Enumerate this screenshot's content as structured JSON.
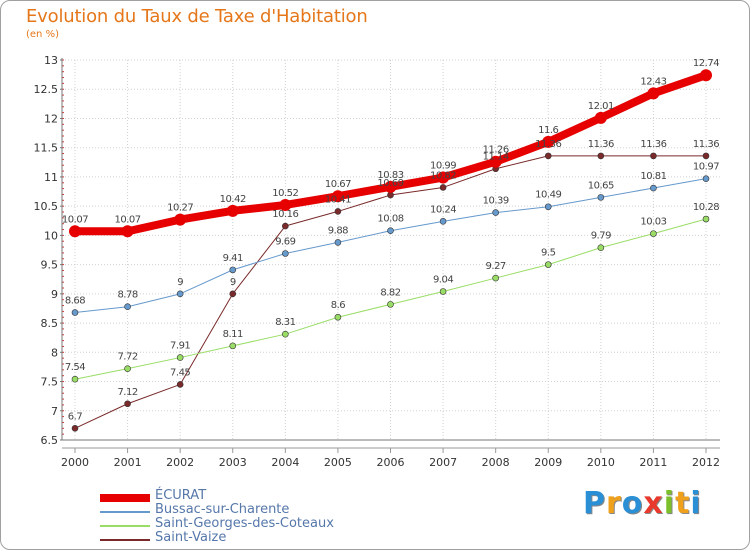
{
  "header": {
    "title": "Evolution du Taux de Taxe d'Habitation",
    "unit": "(en %)"
  },
  "colors": {
    "title": "#e5771a",
    "axis_text": "#333333",
    "grid": "#d0d0d0"
  },
  "logo": {
    "letters": [
      "P",
      "r",
      "o",
      "x",
      "i",
      "t",
      "i"
    ],
    "colors": [
      "#2a8fd4",
      "#f0a11b",
      "#2a8fd4",
      "#e8392c",
      "#7bbf2a",
      "#f0a11b",
      "#2a8fd4"
    ]
  },
  "chart_data": {
    "type": "line",
    "title": "Evolution du Taux de Taxe d'Habitation",
    "ylabel": "(en %)",
    "xlabel": "",
    "x": [
      "2000",
      "2001",
      "2002",
      "2003",
      "2004",
      "2005",
      "2006",
      "2007",
      "2008",
      "2009",
      "2010",
      "2011",
      "2012"
    ],
    "ylim": [
      6.5,
      13
    ],
    "yticks": [
      "6.5",
      "7",
      "7.5",
      "8",
      "8.5",
      "9",
      "9.5",
      "10",
      "10.5",
      "11",
      "11.5",
      "12",
      "12.5",
      "13"
    ],
    "grid": true,
    "legend_position": "bottom-left",
    "series": [
      {
        "name": "ÉCURAT",
        "color": "#e60000",
        "width": 8,
        "values": [
          10.07,
          10.07,
          10.27,
          10.42,
          10.52,
          10.67,
          10.83,
          10.99,
          11.26,
          11.6,
          12.01,
          12.43,
          12.74
        ],
        "labels": [
          "10.07",
          "10.07",
          "10.27",
          "10.42",
          "10.52",
          "10.67",
          "10.83",
          "10.99",
          "11.26",
          "11.6",
          "12.01",
          "12.43",
          "12.74"
        ]
      },
      {
        "name": "Bussac-sur-Charente",
        "color": "#6699cc",
        "width": 1,
        "values": [
          8.68,
          8.78,
          9,
          9.41,
          9.69,
          9.88,
          10.08,
          10.24,
          10.39,
          10.49,
          10.65,
          10.81,
          10.97
        ],
        "labels": [
          "8.68",
          "8.78",
          "9",
          "9.41",
          "9.69",
          "9.88",
          "10.08",
          "10.24",
          "10.39",
          "10.49",
          "10.65",
          "10.81",
          "10.97"
        ]
      },
      {
        "name": "Saint-Georges-des-Coteaux",
        "color": "#99dd66",
        "width": 1,
        "values": [
          7.54,
          7.72,
          7.91,
          8.11,
          8.31,
          8.6,
          8.82,
          9.04,
          9.27,
          9.5,
          9.79,
          10.03,
          10.28
        ],
        "labels": [
          "7.54",
          "7.72",
          "7.91",
          "8.11",
          "8.31",
          "8.6",
          "8.82",
          "9.04",
          "9.27",
          "9.5",
          "9.79",
          "10.03",
          "10.28"
        ]
      },
      {
        "name": "Saint-Vaize",
        "color": "#7a2a2a",
        "width": 1,
        "values": [
          6.7,
          7.12,
          7.45,
          9,
          10.16,
          10.41,
          10.69,
          10.82,
          11.14,
          11.36,
          11.36,
          11.36,
          11.36
        ],
        "labels": [
          "6.7",
          "7.12",
          "7.45",
          "9",
          "10.16",
          "10.41",
          "10.69",
          "10.82",
          "11.14",
          "11.36",
          "11.36",
          "11.36",
          "11.36"
        ]
      }
    ]
  }
}
